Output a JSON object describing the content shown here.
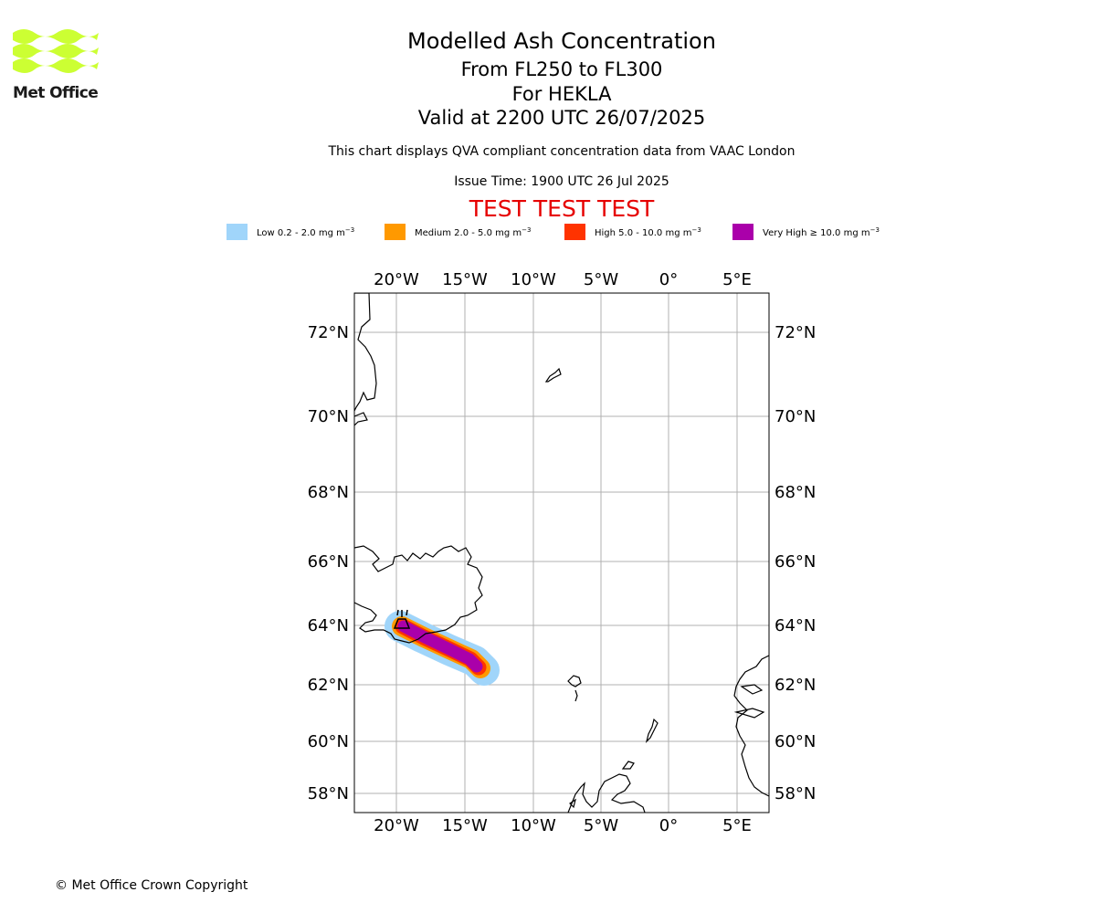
{
  "logo": {
    "text": "Met Office",
    "icon": "met-office-wave-logo",
    "color": "#ccff33"
  },
  "title": {
    "line1": "Modelled Ash Concentration",
    "line2": "From FL250 to FL300",
    "line3": "For HEKLA",
    "line4": "Valid at 2200 UTC 26/07/2025"
  },
  "description": "This chart displays QVA compliant concentration data from VAAC London",
  "issue_time": "Issue Time: 1900 UTC 26 Jul 2025",
  "test_banner": "TEST TEST TEST",
  "legend": [
    {
      "label": "Low 0.2 - 2.0 mg m",
      "unit_exp": "−3",
      "color": "#a0d5fa"
    },
    {
      "label": "Medium 2.0 - 5.0 mg m",
      "unit_exp": "−3",
      "color": "#ff9900"
    },
    {
      "label": "High 5.0 - 10.0 mg m",
      "unit_exp": "−3",
      "color": "#ff3300"
    },
    {
      "label": "Very High ≥ 10.0 mg m",
      "unit_exp": "−3",
      "color": "#aa00aa"
    }
  ],
  "map": {
    "lon_ticks": [
      "20°W",
      "15°W",
      "10°W",
      "5°W",
      "0°",
      "5°E"
    ],
    "lat_ticks": [
      "72°N",
      "70°N",
      "68°N",
      "66°N",
      "64°N",
      "62°N",
      "60°N",
      "58°N"
    ],
    "volcano_symbol": "volcano-marker-icon"
  },
  "copyright": "© Met Office Crown Copyright"
}
